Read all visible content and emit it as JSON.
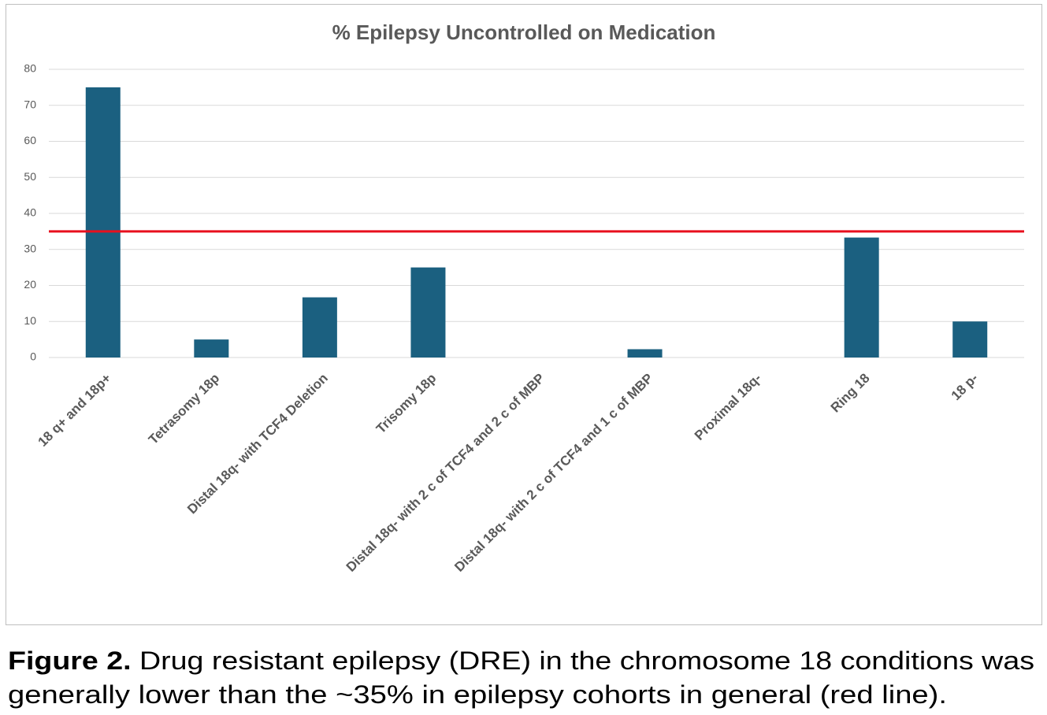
{
  "chart_data": {
    "type": "bar",
    "title": "% Epilepsy Uncontrolled on Medication",
    "categories": [
      "18 q+ and 18p+",
      "Tetrasomy 18p",
      "Distal 18q- with TCF4 Deletion",
      "Trisomy 18p",
      "Distal 18q- with 2 c of TCF4 and 2 c of MBP",
      "Distal 18q- with 2 c of TCF4 and 1 c of MBP",
      "Proximal 18q-",
      "Ring 18",
      "18 p-"
    ],
    "values": [
      75,
      5,
      16.7,
      25,
      0,
      2.3,
      0,
      33.3,
      10
    ],
    "color": "#1b6080",
    "ylim": [
      0,
      80
    ],
    "yticks": [
      0,
      10,
      20,
      30,
      40,
      50,
      60,
      70,
      80
    ],
    "grid": true,
    "reference_line": {
      "value": 35,
      "color": "#e8101e"
    }
  },
  "caption": {
    "label": "Figure 2.",
    "lines": [
      "Drug resistant epilepsy (DRE) in the chromosome 18 conditions was",
      "generally lower than the ~35% in epilepsy cohorts in general (red line)."
    ]
  }
}
